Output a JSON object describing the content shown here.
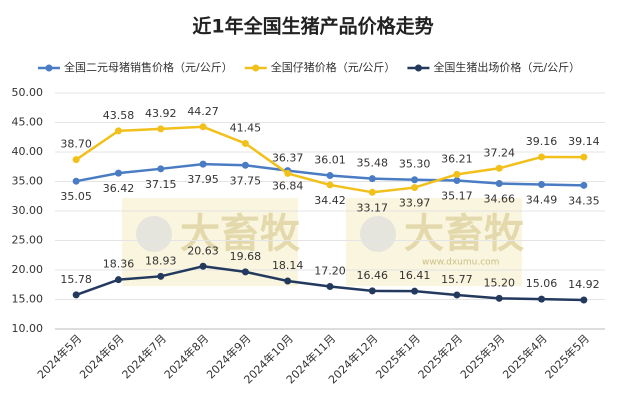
{
  "chart_data": {
    "type": "line",
    "title": "近1年全国生猪产品价格走势",
    "categories": [
      "2024年5月",
      "2024年6月",
      "2024年7月",
      "2024年8月",
      "2024年9月",
      "2024年10月",
      "2024年11月",
      "2024年12月",
      "2025年1月",
      "2025年2月",
      "2025年3月",
      "2025年4月",
      "2025年5月"
    ],
    "series": [
      {
        "name": "全国二元母猪销售价格（元/公斤）",
        "color": "#4a7cc4",
        "values": [
          35.05,
          36.42,
          37.15,
          37.95,
          37.75,
          36.84,
          36.01,
          35.48,
          35.3,
          35.17,
          34.66,
          34.49,
          34.35
        ],
        "value_labels": [
          "35.05",
          "36.42",
          "37.15",
          "37.95",
          "37.75",
          "36.84",
          "36.01",
          "35.48",
          "35.30",
          "35.17",
          "34.66",
          "34.49",
          "34.35"
        ]
      },
      {
        "name": "全国仔猪价格（元/公斤）",
        "color": "#f2c01a",
        "values": [
          38.7,
          43.58,
          43.92,
          44.27,
          41.45,
          36.37,
          34.42,
          33.17,
          33.97,
          36.21,
          37.24,
          39.16,
          39.14
        ],
        "value_labels": [
          "38.70",
          "43.58",
          "43.92",
          "44.27",
          "41.45",
          "36.37",
          "34.42",
          "33.17",
          "33.97",
          "36.21",
          "37.24",
          "39.16",
          "39.14"
        ]
      },
      {
        "name": "全国生猪出场价格（元/公斤）",
        "color": "#23395d",
        "values": [
          15.78,
          18.36,
          18.93,
          20.63,
          19.68,
          18.14,
          17.2,
          16.46,
          16.41,
          15.77,
          15.2,
          15.06,
          14.92
        ],
        "value_labels": [
          "15.78",
          "18.36",
          "18.93",
          "20.63",
          "19.68",
          "18.14",
          "17.20",
          "16.46",
          "16.41",
          "15.77",
          "15.20",
          "15.06",
          "14.92"
        ]
      }
    ],
    "ylim": [
      10,
      50
    ],
    "yticks": [
      {
        "value": 10,
        "label": "10.00"
      },
      {
        "value": 15,
        "label": "15.00"
      },
      {
        "value": 20,
        "label": "20.00"
      },
      {
        "value": 25,
        "label": "25.00"
      },
      {
        "value": 30,
        "label": "30.00"
      },
      {
        "value": 35,
        "label": "35.00"
      },
      {
        "value": 40,
        "label": "40.00"
      },
      {
        "value": 45,
        "label": "45.00"
      },
      {
        "value": 50,
        "label": "50.00"
      }
    ],
    "grid": true,
    "legend": "top",
    "watermark": {
      "brand": "大畜牧",
      "url": "www.dxumu.com"
    }
  }
}
